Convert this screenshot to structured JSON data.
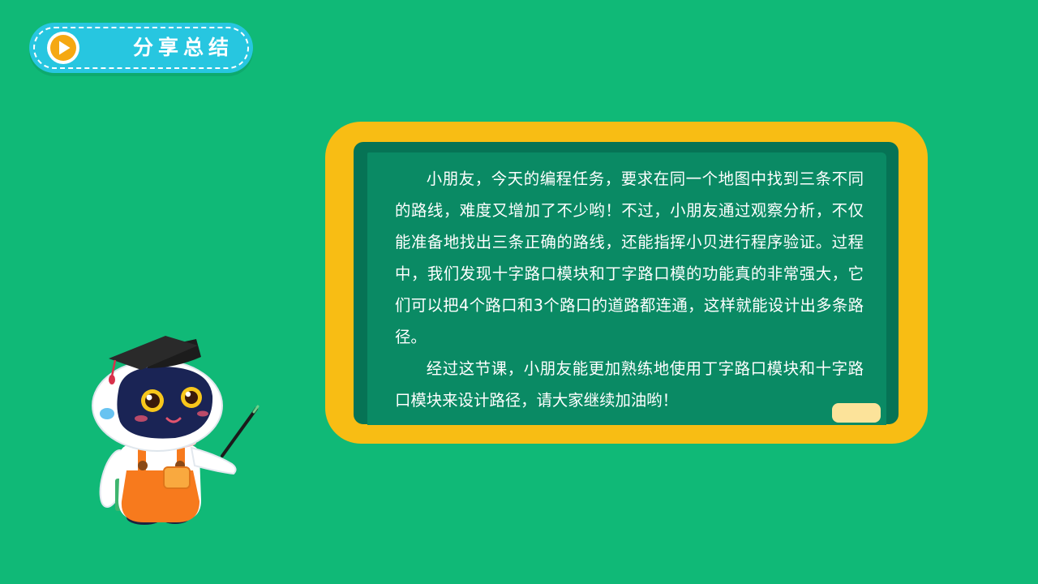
{
  "header": {
    "title": "分享总结",
    "icon": "play-icon"
  },
  "board": {
    "paragraphs": [
      "小朋友，今天的编程任务，要求在同一个地图中找到三条不同的路线，难度又增加了不少哟！不过，小朋友通过观察分析，不仅能准备地找出三条正确的路线，还能指挥小贝进行程序验证。过程中，我们发现十字路口模块和丁字路口模的功能真的非常强大，它们可以把4个路口和3个路口的道路都连通，这样就能设计出多条路径。",
      "经过这节课，小朋友能更加熟练地使用丁字路口模块和十字路口模块来设计路径，请大家继续加油哟！"
    ]
  },
  "colors": {
    "background": "#10b977",
    "title_pill": "#27c6e0",
    "play_button": "#f5a812",
    "board_frame": "#f8bd14",
    "board_surface": "#0a8a64",
    "board_shadow": "#067355",
    "chalk": "#fce39a"
  }
}
